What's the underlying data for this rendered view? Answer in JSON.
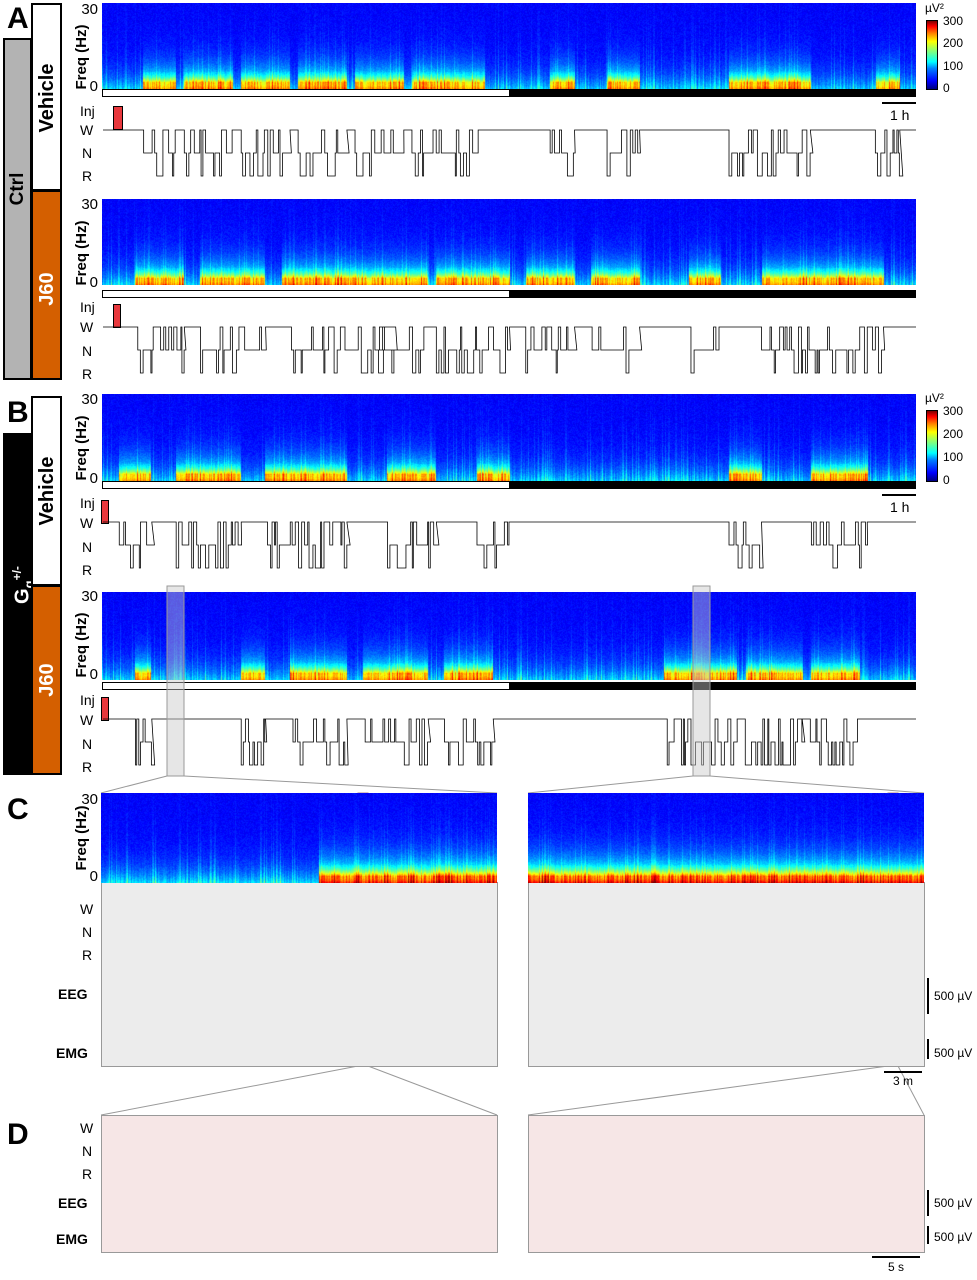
{
  "panels": {
    "A": {
      "letter": "A",
      "group": "Ctrl",
      "conditions": [
        "Vehicle",
        "J60"
      ]
    },
    "B": {
      "letter": "B",
      "group_main": "G",
      "group_sub": "q",
      "group_sup": "+/-",
      "conditions": [
        "Vehicle",
        "J60"
      ]
    },
    "C": {
      "letter": "C"
    },
    "D": {
      "letter": "D"
    }
  },
  "spectrogram": {
    "ylabel": "Freq (Hz)",
    "ytick_top": "30",
    "ytick_bottom": "0"
  },
  "hypnogram": {
    "inj": "Inj",
    "states": [
      "W",
      "N",
      "R"
    ]
  },
  "colorbar": {
    "unit": "µV²",
    "ticks": [
      "300",
      "200",
      "100",
      "0"
    ]
  },
  "scalebars": {
    "hour": "1 h",
    "minutes": "3 m",
    "seconds": "5 s",
    "voltage": "500 µV"
  },
  "signals": {
    "eeg": "EEG",
    "emg": "EMG"
  },
  "colors": {
    "j60": "#d45f00",
    "ctrl": "#b3b3b3",
    "gq": "#000000",
    "inj": "#e8383d",
    "zoom_c": "#ececec",
    "zoom_d": "#f6e6e6"
  }
}
